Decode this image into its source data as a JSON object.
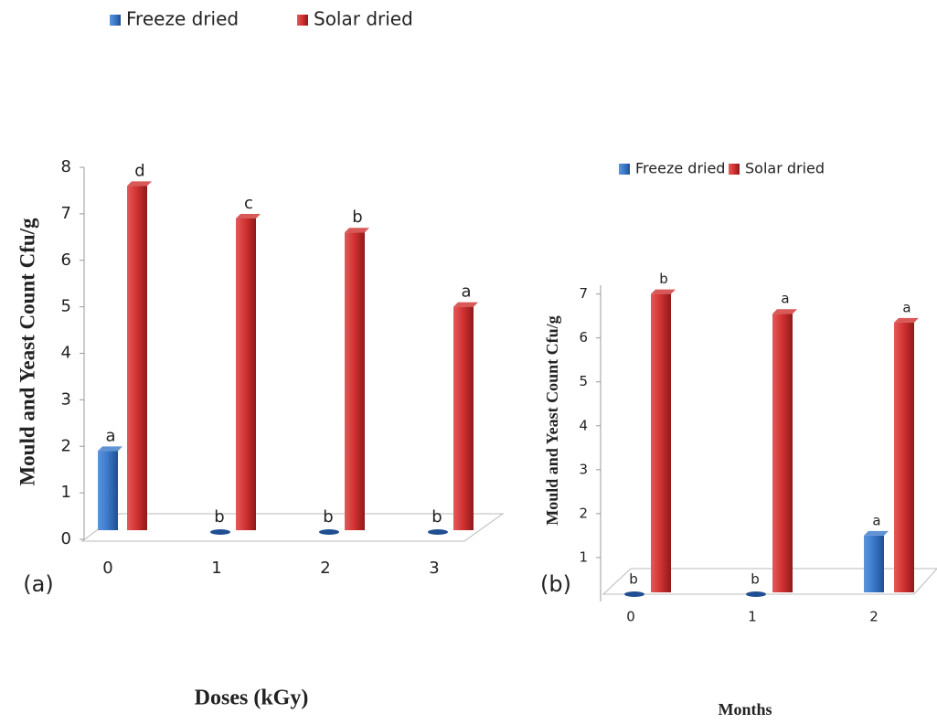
{
  "chart_data": [
    {
      "type": "bar",
      "panel": "(a)",
      "x_label": "Doses (kGy)",
      "y_label": "Mould and Yeast Count Cfu/g",
      "categories": [
        "0",
        "1",
        "2",
        "3"
      ],
      "series": [
        {
          "name": "Freeze dried",
          "color": "#3a78c9",
          "values": [
            1.9,
            0,
            0,
            0
          ],
          "labels": [
            "a",
            "b",
            "b",
            "b"
          ]
        },
        {
          "name": "Solar dried",
          "color": "#d03030",
          "values": [
            7.6,
            6.9,
            6.6,
            5.0
          ],
          "labels": [
            "d",
            "c",
            "b",
            "a"
          ]
        }
      ],
      "ylim": [
        0,
        8
      ],
      "yticks": [
        0,
        1,
        2,
        3,
        4,
        5,
        6,
        7,
        8
      ]
    },
    {
      "type": "bar",
      "panel": "(b)",
      "x_label": "Months",
      "y_label": "Mould and Yeast Count Cfu/g",
      "categories": [
        "0",
        "1",
        "2"
      ],
      "series": [
        {
          "name": "Freeze dried",
          "color": "#3a78c9",
          "values": [
            0,
            0,
            1.5
          ],
          "labels": [
            "b",
            "b",
            "a"
          ]
        },
        {
          "name": "Solar dried",
          "color": "#d03030",
          "values": [
            7.0,
            6.55,
            6.35
          ],
          "labels": [
            "b",
            "a",
            "a"
          ]
        }
      ],
      "ylim": [
        0,
        7.2
      ],
      "yticks": [
        1,
        2,
        3,
        4,
        5,
        6,
        7
      ]
    }
  ]
}
